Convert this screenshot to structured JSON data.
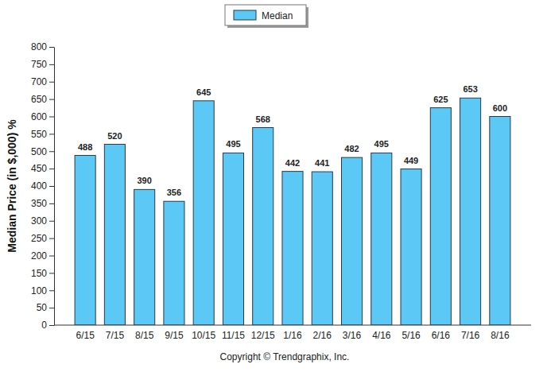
{
  "chart_data": {
    "type": "bar",
    "categories": [
      "6/15",
      "7/15",
      "8/15",
      "9/15",
      "10/15",
      "11/15",
      "12/15",
      "1/16",
      "2/16",
      "3/16",
      "4/16",
      "5/16",
      "6/16",
      "7/16",
      "8/16"
    ],
    "series": [
      {
        "name": "Median",
        "color": "#5bc8f5",
        "values": [
          488,
          520,
          390,
          356,
          645,
          495,
          568,
          442,
          441,
          482,
          495,
          449,
          625,
          653,
          600
        ]
      }
    ],
    "y_label": "Median Price (in $,000) %",
    "annotations": [
      "Copyright © Trendgraphix, Inc."
    ],
    "ylim": [
      0,
      800
    ],
    "yticks": [
      0,
      50,
      100,
      150,
      200,
      250,
      300,
      350,
      400,
      450,
      500,
      550,
      600,
      650,
      700,
      750,
      800
    ],
    "grid": false,
    "legend": "top",
    "data_labels": true
  }
}
